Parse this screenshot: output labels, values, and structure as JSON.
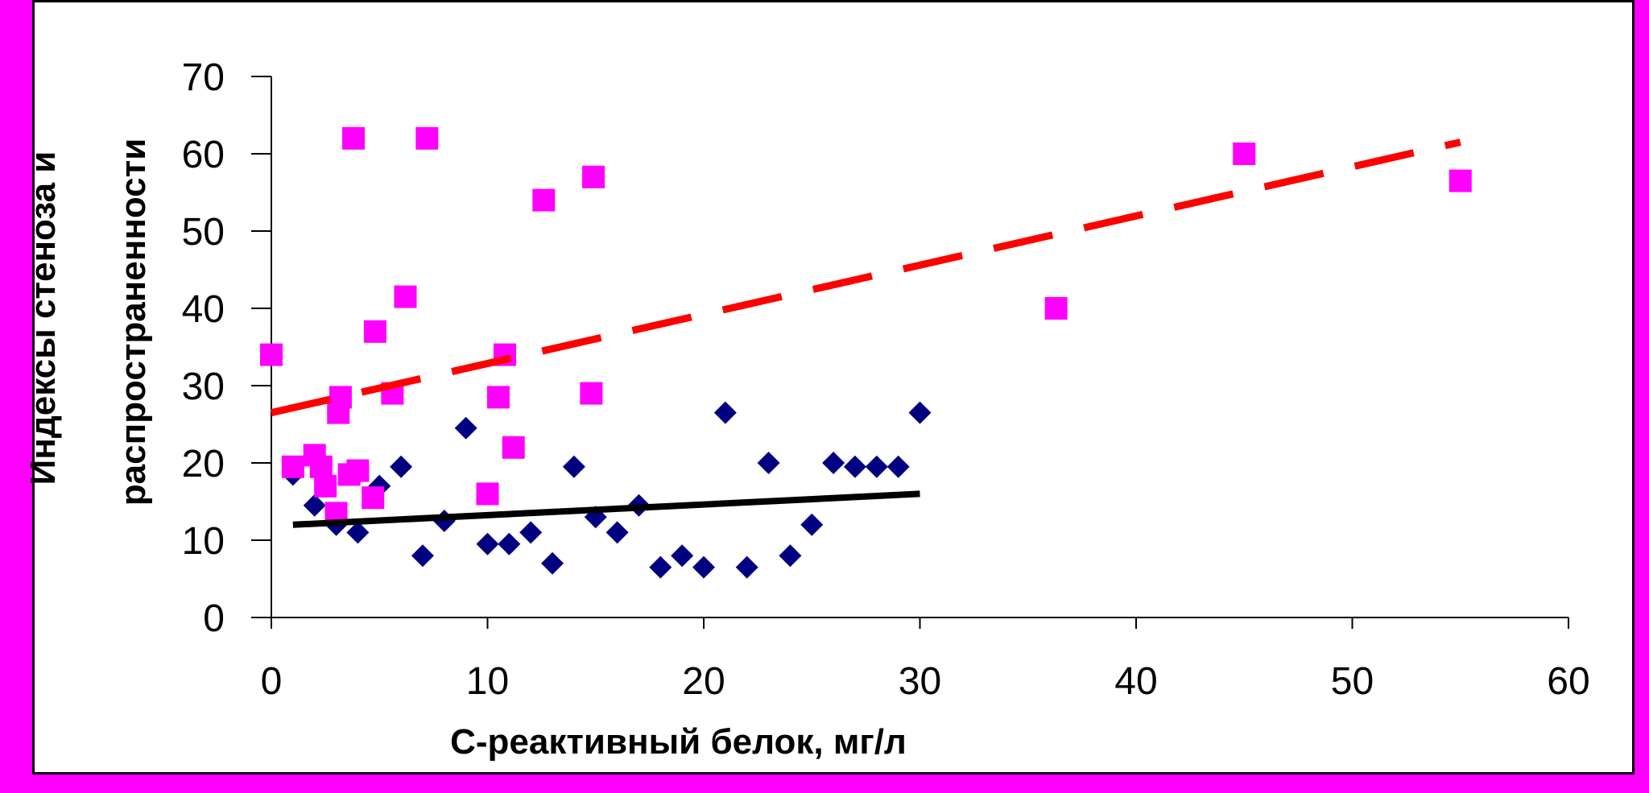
{
  "chart_data": {
    "type": "scatter",
    "title": "",
    "xlabel": "С-реактивный белок, мг/л",
    "ylabel_line1": "Индексы стеноза и",
    "ylabel_line2": "распространенности",
    "xlim": [
      0,
      60
    ],
    "ylim": [
      0,
      70
    ],
    "x_ticks": [
      0,
      10,
      20,
      30,
      40,
      50,
      60
    ],
    "y_ticks": [
      0,
      10,
      20,
      30,
      40,
      50,
      60,
      70
    ],
    "grid": false,
    "legend": "none",
    "series": [
      {
        "marker": "diamond",
        "color": "#000080",
        "points": [
          [
            1,
            18.5
          ],
          [
            2,
            14.5
          ],
          [
            3,
            12
          ],
          [
            4,
            11
          ],
          [
            5,
            17
          ],
          [
            6,
            19.5
          ],
          [
            7,
            8
          ],
          [
            8,
            12.5
          ],
          [
            9,
            24.5
          ],
          [
            10,
            9.5
          ],
          [
            11,
            9.5
          ],
          [
            12,
            11
          ],
          [
            13,
            7
          ],
          [
            14,
            19.5
          ],
          [
            15,
            13
          ],
          [
            16,
            11
          ],
          [
            17,
            14.5
          ],
          [
            18,
            6.5
          ],
          [
            19,
            8
          ],
          [
            20,
            6.5
          ],
          [
            21,
            26.5
          ],
          [
            22,
            6.5
          ],
          [
            23,
            20
          ],
          [
            24,
            8
          ],
          [
            25,
            12
          ],
          [
            26,
            20
          ],
          [
            27,
            19.5
          ],
          [
            28,
            19.5
          ],
          [
            29,
            19.5
          ],
          [
            30,
            26.5
          ]
        ],
        "trend": {
          "x": [
            1,
            30
          ],
          "y": [
            12,
            16
          ],
          "color": "#000000",
          "style": "solid"
        }
      },
      {
        "marker": "square",
        "color": "#ff00ff",
        "points": [
          [
            0,
            34
          ],
          [
            1,
            19.5
          ],
          [
            2,
            21
          ],
          [
            2.3,
            19.5
          ],
          [
            2.5,
            17
          ],
          [
            3,
            13.5
          ],
          [
            3.1,
            26.5
          ],
          [
            3.2,
            28.5
          ],
          [
            3.6,
            18.5
          ],
          [
            3.8,
            62
          ],
          [
            4,
            19
          ],
          [
            4.7,
            15.5
          ],
          [
            4.8,
            37
          ],
          [
            5.6,
            29
          ],
          [
            6.2,
            41.5
          ],
          [
            7.2,
            62
          ],
          [
            10,
            16
          ],
          [
            10.5,
            28.5
          ],
          [
            10.8,
            34
          ],
          [
            11.2,
            22
          ],
          [
            12.6,
            54
          ],
          [
            14.8,
            29
          ],
          [
            14.9,
            57
          ],
          [
            36.3,
            40
          ],
          [
            45,
            60
          ],
          [
            55,
            56.5
          ]
        ],
        "trend": {
          "x": [
            0,
            55
          ],
          "y": [
            26.5,
            61.5
          ],
          "color": "#ff0000",
          "style": "dashed"
        }
      }
    ]
  }
}
